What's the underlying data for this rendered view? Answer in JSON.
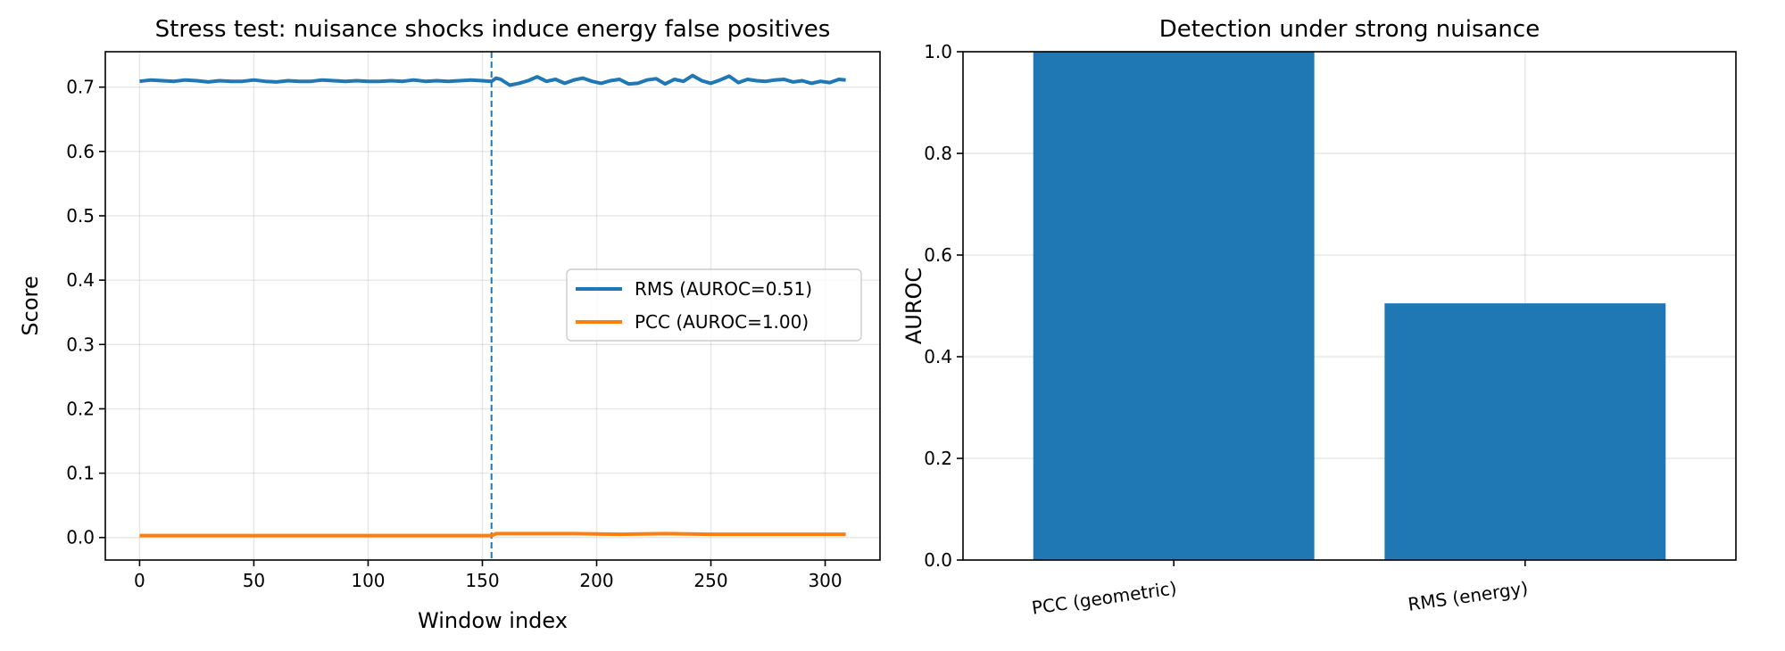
{
  "chart_data": [
    {
      "type": "line",
      "title": "Stress test: nuisance shocks induce energy false positives",
      "xlabel": "Window index",
      "ylabel": "Score",
      "xlim": [
        -15,
        324
      ],
      "ylim": [
        -0.035,
        0.755
      ],
      "xticks": [
        0,
        50,
        100,
        150,
        200,
        250,
        300
      ],
      "xtick_labels": [
        "0",
        "50",
        "100",
        "150",
        "200",
        "250",
        "300"
      ],
      "yticks": [
        0.0,
        0.1,
        0.2,
        0.3,
        0.4,
        0.5,
        0.6,
        0.7
      ],
      "ytick_labels": [
        "0.0",
        "0.1",
        "0.2",
        "0.3",
        "0.4",
        "0.5",
        "0.6",
        "0.7"
      ],
      "grid": true,
      "legend_position": "center-right",
      "change_point": 154,
      "series": [
        {
          "name": "RMS (AUROC=0.51)",
          "color": "#1f77b4",
          "x": [
            0,
            5,
            10,
            15,
            20,
            25,
            30,
            35,
            40,
            45,
            50,
            55,
            60,
            65,
            70,
            75,
            80,
            85,
            90,
            95,
            100,
            105,
            110,
            115,
            120,
            125,
            130,
            135,
            140,
            145,
            150,
            154,
            156,
            158,
            162,
            166,
            170,
            174,
            178,
            182,
            186,
            190,
            194,
            198,
            202,
            206,
            210,
            214,
            218,
            222,
            226,
            230,
            234,
            238,
            242,
            246,
            250,
            254,
            258,
            262,
            266,
            270,
            274,
            278,
            282,
            286,
            290,
            294,
            298,
            302,
            306,
            309
          ],
          "values": [
            0.709,
            0.711,
            0.71,
            0.709,
            0.711,
            0.71,
            0.708,
            0.71,
            0.709,
            0.709,
            0.711,
            0.709,
            0.708,
            0.71,
            0.709,
            0.709,
            0.711,
            0.71,
            0.709,
            0.71,
            0.709,
            0.709,
            0.71,
            0.709,
            0.711,
            0.709,
            0.71,
            0.709,
            0.71,
            0.711,
            0.71,
            0.709,
            0.714,
            0.712,
            0.703,
            0.706,
            0.71,
            0.716,
            0.709,
            0.712,
            0.706,
            0.711,
            0.714,
            0.709,
            0.706,
            0.71,
            0.712,
            0.705,
            0.706,
            0.711,
            0.713,
            0.705,
            0.712,
            0.709,
            0.718,
            0.71,
            0.706,
            0.711,
            0.717,
            0.707,
            0.712,
            0.71,
            0.709,
            0.711,
            0.712,
            0.708,
            0.71,
            0.706,
            0.709,
            0.707,
            0.712,
            0.711
          ]
        },
        {
          "name": "PCC (AUROC=1.00)",
          "color": "#ff7f0e",
          "x": [
            0,
            20,
            40,
            60,
            80,
            100,
            120,
            140,
            154,
            156,
            170,
            190,
            210,
            230,
            250,
            270,
            290,
            309
          ],
          "values": [
            0.003,
            0.003,
            0.003,
            0.003,
            0.003,
            0.003,
            0.003,
            0.003,
            0.003,
            0.006,
            0.006,
            0.006,
            0.005,
            0.006,
            0.005,
            0.005,
            0.005,
            0.005
          ]
        }
      ]
    },
    {
      "type": "bar",
      "title": "Detection under strong nuisance",
      "xlabel": "",
      "ylabel": "AUROC",
      "ylim": [
        0.0,
        1.0
      ],
      "yticks": [
        0.0,
        0.2,
        0.4,
        0.6,
        0.8,
        1.0
      ],
      "ytick_labels": [
        "0.0",
        "0.2",
        "0.4",
        "0.6",
        "0.8",
        "1.0"
      ],
      "grid": true,
      "categories": [
        "PCC (geometric)",
        "RMS (energy)"
      ],
      "values": [
        1.0,
        0.505
      ],
      "color": "#1f77b4"
    }
  ]
}
